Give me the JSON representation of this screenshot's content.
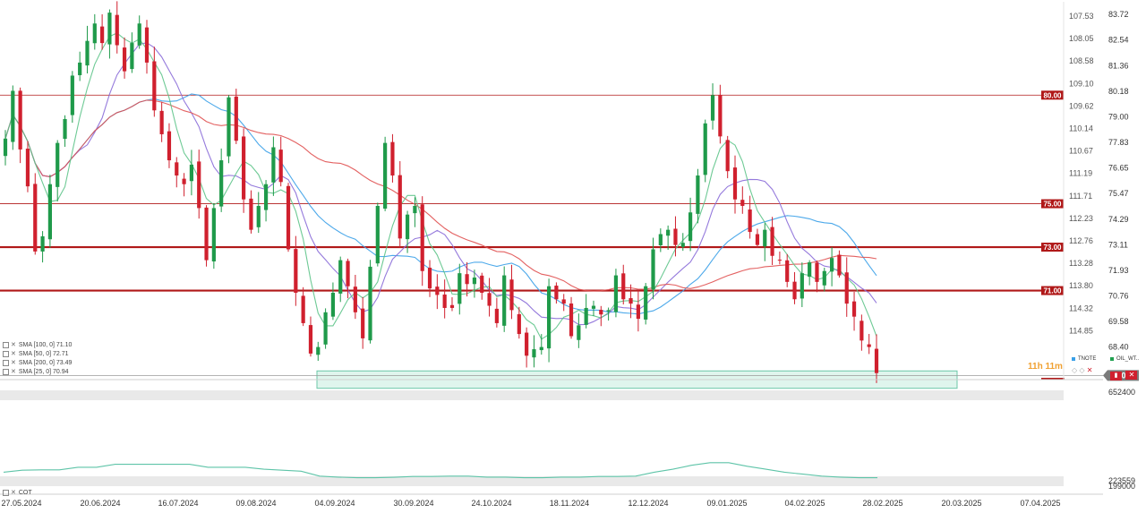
{
  "chart_data": {
    "type": "candlestick",
    "instrument": "OIL_WTI",
    "compare_instrument": "TNOTE",
    "title": "",
    "right_axis_ticks": [
      "83.72",
      "82.54",
      "81.36",
      "80.18",
      "79.00",
      "77.83",
      "76.65",
      "75.47",
      "74.29",
      "73.11",
      "71.93",
      "70.76",
      "69.58",
      "68.40"
    ],
    "left_axis_ticks": [
      "107.53",
      "108.05",
      "108.58",
      "109.10",
      "109.62",
      "110.14",
      "110.67",
      "111.19",
      "111.71",
      "112.23",
      "112.76",
      "113.28",
      "113.80",
      "114.32",
      "114.85"
    ],
    "ylim": [
      66.9,
      84.3
    ],
    "x_labels": [
      "27.05.2024",
      "20.06.2024",
      "16.07.2024",
      "09.08.2024",
      "04.09.2024",
      "30.09.2024",
      "24.10.2024",
      "18.11.2024",
      "12.12.2024",
      "09.01.2025",
      "04.02.2025",
      "28.02.2025",
      "20.03.2025",
      "07.04.2025"
    ],
    "current_price": "67.09",
    "levels": [
      {
        "value": 80.0,
        "label": "80.00",
        "weight": "thin"
      },
      {
        "value": 75.0,
        "label": "75.00",
        "weight": "thin"
      },
      {
        "value": 73.0,
        "label": "73.00",
        "weight": "thick"
      },
      {
        "value": 71.0,
        "label": "71.00",
        "weight": "thick"
      }
    ],
    "support_zone": [
      66.5,
      67.3
    ],
    "closes": [
      78.0,
      80.2,
      77.5,
      75.8,
      72.8,
      73.5,
      75.9,
      77.8,
      78.9,
      80.9,
      81.5,
      82.5,
      83.3,
      82.4,
      83.8,
      82.3,
      81.1,
      82.4,
      83.3,
      81.5,
      79.3,
      78.2,
      77.0,
      76.3,
      75.9,
      76.8,
      74.8,
      72.4,
      74.8,
      77.0,
      79.9,
      77.9,
      75.2,
      73.8,
      74.9,
      75.9,
      77.6,
      76.0,
      72.9,
      70.9,
      69.5,
      68.1,
      68.4,
      70.0,
      70.9,
      72.4,
      71.2,
      70.0,
      68.8,
      72.1,
      74.9,
      77.8,
      76.3,
      73.4,
      74.5,
      74.9,
      71.9,
      71.1,
      70.8,
      70.2,
      70.2,
      71.8,
      71.3,
      71.6,
      70.9,
      70.3,
      69.5,
      71.7,
      70.1,
      69.0,
      68.0,
      68.3,
      68.4,
      71.2,
      70.6,
      70.4,
      68.9,
      69.4,
      70.2,
      70.3,
      69.9,
      70.1,
      71.7,
      70.6,
      70.4,
      69.7,
      71.2,
      72.9,
      73.6,
      73.8,
      73.1,
      73.2,
      74.6,
      76.3,
      78.7,
      80.0,
      78.1,
      76.5,
      75.2,
      74.9,
      73.7,
      73.1,
      73.8,
      72.6,
      72.4,
      71.4,
      70.6,
      71.8,
      72.3,
      71.4,
      71.9,
      72.5,
      71.7,
      70.4,
      69.8,
      68.7,
      68.4,
      67.2
    ]
  },
  "legend": [
    {
      "label": "SMA [100, 0] 71.10",
      "color": "#3aa0e8"
    },
    {
      "label": "SMA [50, 0] 72.71",
      "color": "#8a6cd8"
    },
    {
      "label": "SMA [200, 0] 73.49",
      "color": "#e05050"
    },
    {
      "label": "SMA [25, 0] 70.94",
      "color": "#5ec48a"
    }
  ],
  "symbols": [
    {
      "name": "TNOTE",
      "color": "#3aa0e8"
    },
    {
      "name": "OIL_WT..",
      "color": "#20a050"
    }
  ],
  "timer": "11h 11m",
  "cot": {
    "label": "COT",
    "ticks": [
      "652400",
      "223559",
      "199000"
    ]
  },
  "colors": {
    "up": "#1f9a4a",
    "down": "#d0202e",
    "level": "#b01818",
    "zone_fill": "#d9f3ea",
    "zone_stroke": "#6cc7a8",
    "cot_line": "#5ec4a8",
    "price_tag": "#7a7a7a"
  }
}
